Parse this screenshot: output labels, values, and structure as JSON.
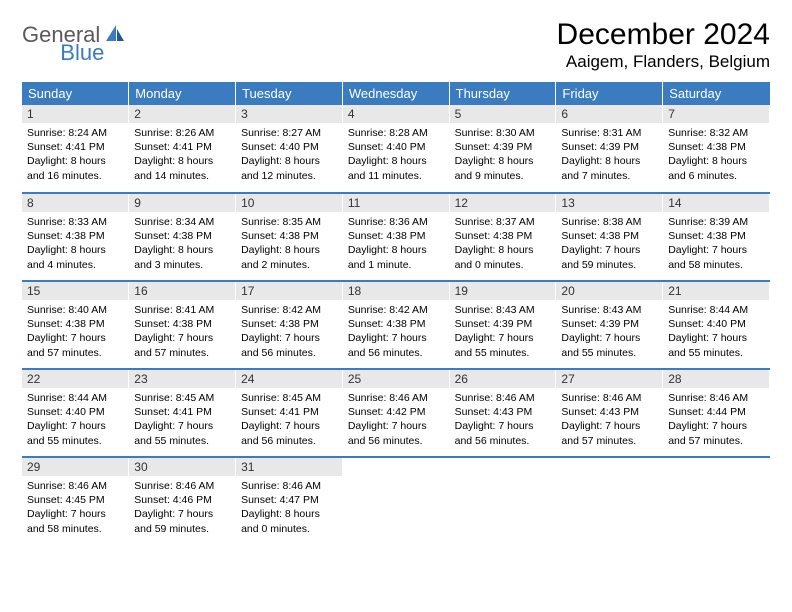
{
  "brand": {
    "word1": "General",
    "word2": "Blue"
  },
  "title": "December 2024",
  "location": "Aaigem, Flanders, Belgium",
  "colors": {
    "header_bg": "#3b7bbf",
    "header_text": "#ffffff",
    "daynum_bg": "#e8e8e8",
    "rule": "#3b7bbf",
    "logo_gray": "#5a5a5a",
    "logo_blue": "#3b7bbf"
  },
  "day_headers": [
    "Sunday",
    "Monday",
    "Tuesday",
    "Wednesday",
    "Thursday",
    "Friday",
    "Saturday"
  ],
  "weeks": [
    [
      {
        "n": "1",
        "sr": "8:24 AM",
        "ss": "4:41 PM",
        "dl": "8 hours and 16 minutes."
      },
      {
        "n": "2",
        "sr": "8:26 AM",
        "ss": "4:41 PM",
        "dl": "8 hours and 14 minutes."
      },
      {
        "n": "3",
        "sr": "8:27 AM",
        "ss": "4:40 PM",
        "dl": "8 hours and 12 minutes."
      },
      {
        "n": "4",
        "sr": "8:28 AM",
        "ss": "4:40 PM",
        "dl": "8 hours and 11 minutes."
      },
      {
        "n": "5",
        "sr": "8:30 AM",
        "ss": "4:39 PM",
        "dl": "8 hours and 9 minutes."
      },
      {
        "n": "6",
        "sr": "8:31 AM",
        "ss": "4:39 PM",
        "dl": "8 hours and 7 minutes."
      },
      {
        "n": "7",
        "sr": "8:32 AM",
        "ss": "4:38 PM",
        "dl": "8 hours and 6 minutes."
      }
    ],
    [
      {
        "n": "8",
        "sr": "8:33 AM",
        "ss": "4:38 PM",
        "dl": "8 hours and 4 minutes."
      },
      {
        "n": "9",
        "sr": "8:34 AM",
        "ss": "4:38 PM",
        "dl": "8 hours and 3 minutes."
      },
      {
        "n": "10",
        "sr": "8:35 AM",
        "ss": "4:38 PM",
        "dl": "8 hours and 2 minutes."
      },
      {
        "n": "11",
        "sr": "8:36 AM",
        "ss": "4:38 PM",
        "dl": "8 hours and 1 minute."
      },
      {
        "n": "12",
        "sr": "8:37 AM",
        "ss": "4:38 PM",
        "dl": "8 hours and 0 minutes."
      },
      {
        "n": "13",
        "sr": "8:38 AM",
        "ss": "4:38 PM",
        "dl": "7 hours and 59 minutes."
      },
      {
        "n": "14",
        "sr": "8:39 AM",
        "ss": "4:38 PM",
        "dl": "7 hours and 58 minutes."
      }
    ],
    [
      {
        "n": "15",
        "sr": "8:40 AM",
        "ss": "4:38 PM",
        "dl": "7 hours and 57 minutes."
      },
      {
        "n": "16",
        "sr": "8:41 AM",
        "ss": "4:38 PM",
        "dl": "7 hours and 57 minutes."
      },
      {
        "n": "17",
        "sr": "8:42 AM",
        "ss": "4:38 PM",
        "dl": "7 hours and 56 minutes."
      },
      {
        "n": "18",
        "sr": "8:42 AM",
        "ss": "4:38 PM",
        "dl": "7 hours and 56 minutes."
      },
      {
        "n": "19",
        "sr": "8:43 AM",
        "ss": "4:39 PM",
        "dl": "7 hours and 55 minutes."
      },
      {
        "n": "20",
        "sr": "8:43 AM",
        "ss": "4:39 PM",
        "dl": "7 hours and 55 minutes."
      },
      {
        "n": "21",
        "sr": "8:44 AM",
        "ss": "4:40 PM",
        "dl": "7 hours and 55 minutes."
      }
    ],
    [
      {
        "n": "22",
        "sr": "8:44 AM",
        "ss": "4:40 PM",
        "dl": "7 hours and 55 minutes."
      },
      {
        "n": "23",
        "sr": "8:45 AM",
        "ss": "4:41 PM",
        "dl": "7 hours and 55 minutes."
      },
      {
        "n": "24",
        "sr": "8:45 AM",
        "ss": "4:41 PM",
        "dl": "7 hours and 56 minutes."
      },
      {
        "n": "25",
        "sr": "8:46 AM",
        "ss": "4:42 PM",
        "dl": "7 hours and 56 minutes."
      },
      {
        "n": "26",
        "sr": "8:46 AM",
        "ss": "4:43 PM",
        "dl": "7 hours and 56 minutes."
      },
      {
        "n": "27",
        "sr": "8:46 AM",
        "ss": "4:43 PM",
        "dl": "7 hours and 57 minutes."
      },
      {
        "n": "28",
        "sr": "8:46 AM",
        "ss": "4:44 PM",
        "dl": "7 hours and 57 minutes."
      }
    ],
    [
      {
        "n": "29",
        "sr": "8:46 AM",
        "ss": "4:45 PM",
        "dl": "7 hours and 58 minutes."
      },
      {
        "n": "30",
        "sr": "8:46 AM",
        "ss": "4:46 PM",
        "dl": "7 hours and 59 minutes."
      },
      {
        "n": "31",
        "sr": "8:46 AM",
        "ss": "4:47 PM",
        "dl": "8 hours and 0 minutes."
      },
      null,
      null,
      null,
      null
    ]
  ],
  "labels": {
    "sunrise": "Sunrise: ",
    "sunset": "Sunset: ",
    "daylight": "Daylight: "
  }
}
